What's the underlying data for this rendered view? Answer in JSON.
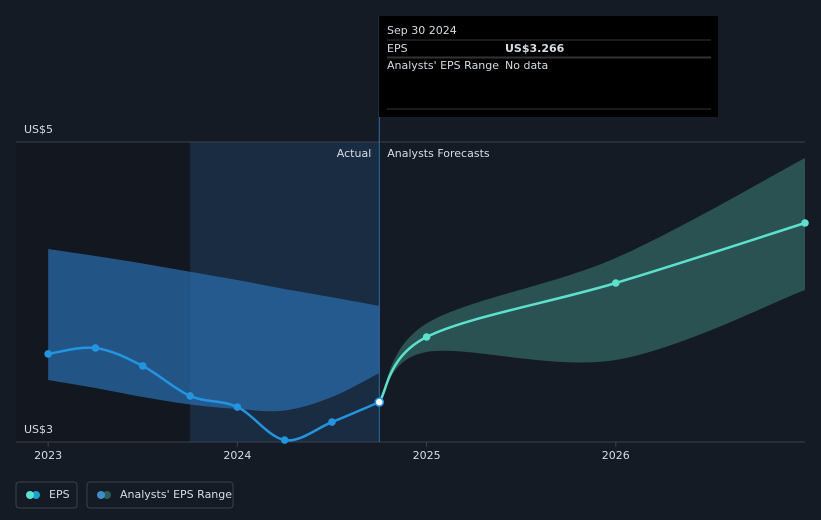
{
  "chart_data": {
    "type": "line",
    "x": [
      2023,
      2023.25,
      2023.5,
      2023.75,
      2024,
      2024.25,
      2024.5,
      2024.75,
      2025,
      2026,
      2027
    ],
    "xlim": [
      2022.83,
      2027.0
    ],
    "xticks": [
      2023,
      2024,
      2025,
      2026
    ],
    "ylim": [
      3,
      5
    ],
    "yticks": [
      {
        "value": 3,
        "label": "US$3"
      },
      {
        "value": 5,
        "label": "US$5"
      }
    ],
    "actual_label": "Actual",
    "forecast_label": "Analysts Forecasts",
    "series": [
      {
        "name": "EPS",
        "color": "#2394df",
        "forecast_color": "#5ce0cf",
        "values": [
          3.587,
          3.627,
          3.507,
          3.307,
          3.233,
          3.013,
          3.133,
          3.266,
          3.7,
          4.06,
          4.46
        ]
      },
      {
        "name": "Analysts' EPS Range",
        "color": "#2a6aa8",
        "forecast_color": "#2f5c5a",
        "high": [
          4.287,
          4.24,
          4.19,
          4.135,
          4.08,
          4.02,
          3.965,
          3.907,
          3.79,
          4.227,
          4.893
        ],
        "low": [
          3.413,
          3.36,
          3.3,
          3.25,
          3.22,
          3.21,
          3.3,
          3.46,
          3.6,
          3.547,
          4.013
        ]
      }
    ],
    "tooltip": {
      "title": "Sep 30 2024",
      "rows": [
        {
          "label": "EPS",
          "value": "US$3.266"
        },
        {
          "label": "Analysts' EPS Range",
          "value": "No data"
        }
      ]
    }
  }
}
